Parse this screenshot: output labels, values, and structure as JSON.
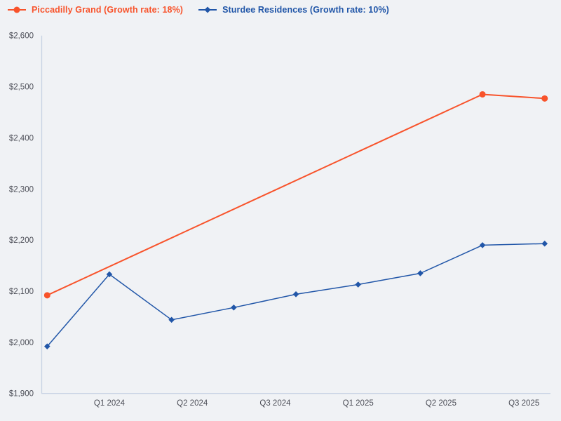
{
  "page": {
    "background": "#f0f2f5"
  },
  "legend": {
    "items": [
      {
        "label": "Piccadilly Grand (Growth rate: 18%)",
        "color": "#f8532b",
        "marker": "circle"
      },
      {
        "label": "Sturdee Residences (Growth rate: 10%)",
        "color": "#2156a8",
        "marker": "diamond"
      }
    ]
  },
  "chart_data": {
    "type": "line",
    "title": "",
    "xlabel": "",
    "ylabel": "",
    "x_unit": "months since Oct 2023 (quarterly data points)",
    "series": [
      {
        "name": "Piccadilly Grand",
        "color": "#f8532b",
        "marker": "circle",
        "marker_size": 4.5,
        "line_width": 2,
        "x": [
          0,
          21,
          24
        ],
        "values": [
          2092,
          2485,
          2477
        ]
      },
      {
        "name": "Sturdee Residences",
        "color": "#2156a8",
        "marker": "diamond",
        "marker_size": 4.3,
        "line_width": 1.5,
        "x": [
          0,
          3,
          6,
          9,
          12,
          15,
          18,
          21,
          24
        ],
        "values": [
          1992,
          2133,
          2044,
          2068,
          2094,
          2113,
          2135,
          2190,
          2193
        ]
      }
    ],
    "x_ticks": [
      {
        "t": 3,
        "label": "Q1 2024"
      },
      {
        "t": 7,
        "label": "Q2 2024"
      },
      {
        "t": 11,
        "label": "Q3 2024"
      },
      {
        "t": 15,
        "label": "Q1 2025"
      },
      {
        "t": 19,
        "label": "Q2 2025"
      },
      {
        "t": 23,
        "label": "Q3 2025"
      }
    ],
    "y_ticks": [
      {
        "v": 1900,
        "label": "$1,900"
      },
      {
        "v": 2000,
        "label": "$2,000"
      },
      {
        "v": 2100,
        "label": "$2,100"
      },
      {
        "v": 2200,
        "label": "$2,200"
      },
      {
        "v": 2300,
        "label": "$2,300"
      },
      {
        "v": 2400,
        "label": "$2,400"
      },
      {
        "v": 2500,
        "label": "$2,500"
      },
      {
        "v": 2600,
        "label": "$2,600"
      }
    ],
    "xlim": [
      -0.264,
      24.28
    ],
    "ylim": [
      1900,
      2600
    ],
    "grid": false,
    "legend_position": "top-left",
    "axis_color": "#c7d2e4",
    "tick_label_color": "#4d4f58"
  }
}
